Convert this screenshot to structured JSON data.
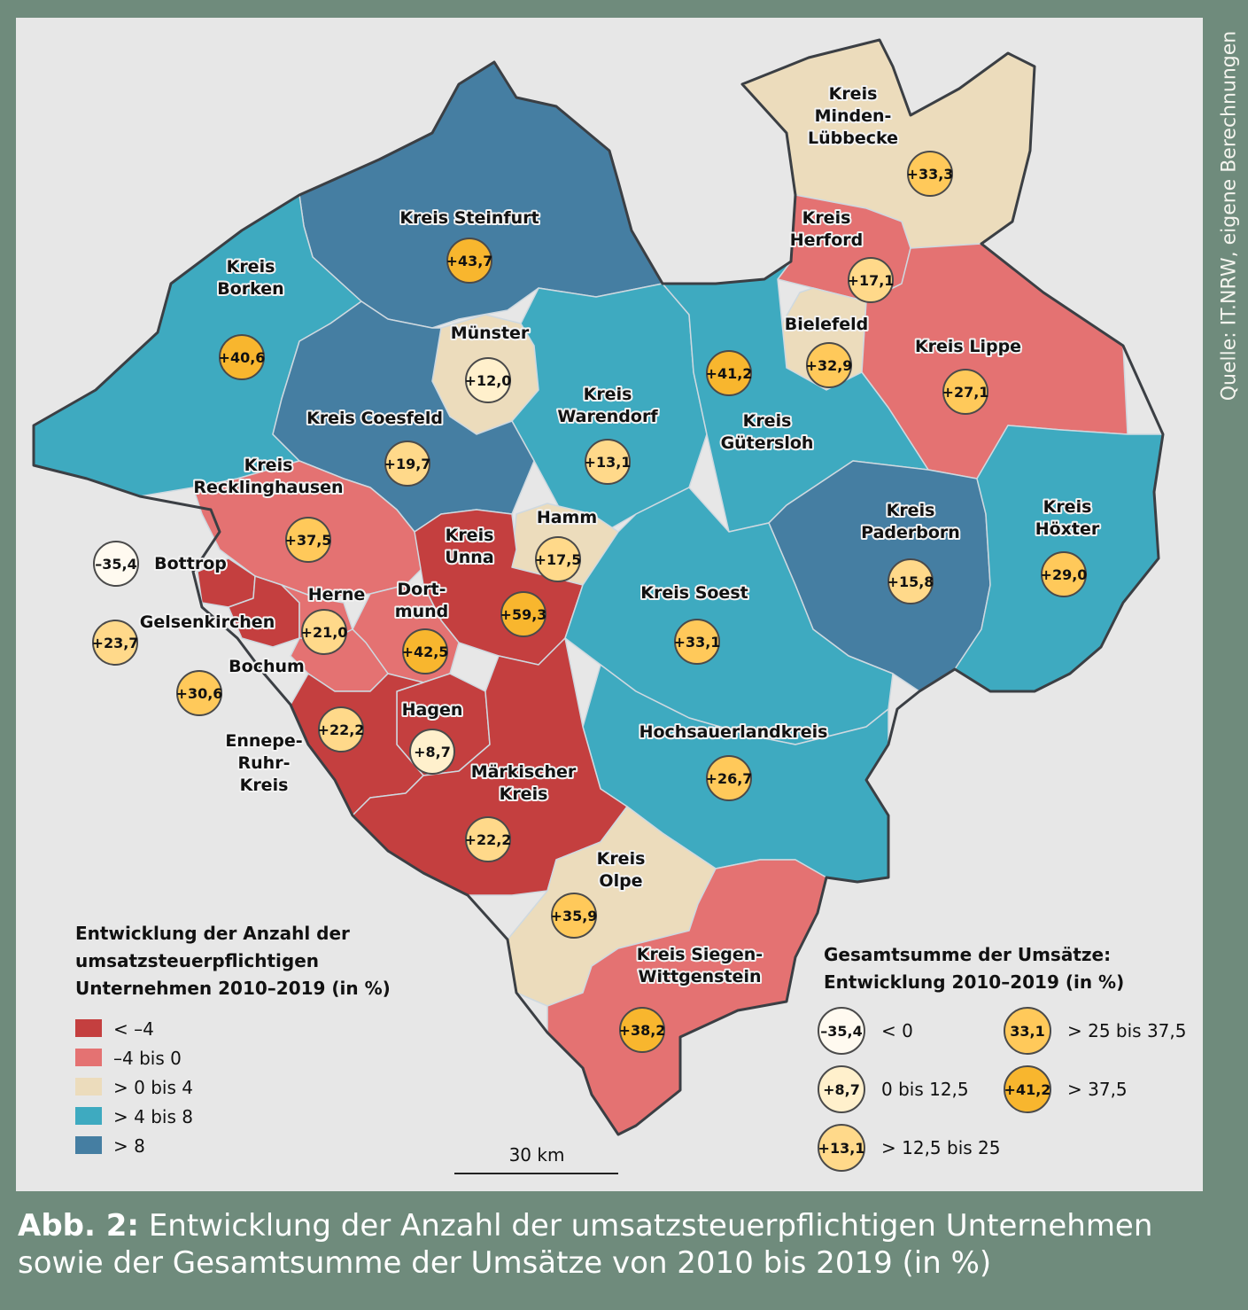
{
  "caption": {
    "label": "Abb. 2:",
    "text_line1": "Entwicklung der Anzahl der umsatzsteuerpflichtigen Unternehmen",
    "text_line2": "sowie der Gesamtsumme der Umsätze von 2010 bis 2019 (in %)"
  },
  "source": "Quelle: IT.NRW, eigene Berechnungen",
  "colors": {
    "lt_minus4": "#c43f3f",
    "minus4_0": "#e47272",
    "0_4": "#ecdcbc",
    "4_8": "#3eaac0",
    "gt8": "#457ea2",
    "circle_lt0": "#fffaf0",
    "circle_0_12_5": "#fff0cc",
    "circle_12_5_25": "#ffd98a",
    "circle_25_37_5": "#ffc95a",
    "circle_gt37_5": "#f8b62e"
  },
  "regions": [
    {
      "name": "Kreis Minden-Lübbecke",
      "label_lines": [
        "Kreis",
        "Minden-",
        "Lübbecke"
      ],
      "class": "0_4",
      "value": "+33,3"
    },
    {
      "name": "Kreis Herford",
      "label_lines": [
        "Kreis",
        "Herford"
      ],
      "class": "minus4_0",
      "value": "+17,1"
    },
    {
      "name": "Bielefeld",
      "label_lines": [
        "Bielefeld"
      ],
      "class": "0_4",
      "value": "+32,9"
    },
    {
      "name": "Kreis Lippe",
      "label_lines": [
        "Kreis Lippe"
      ],
      "class": "minus4_0",
      "value": "+27,1"
    },
    {
      "name": "Kreis Steinfurt",
      "label_lines": [
        "Kreis Steinfurt"
      ],
      "class": "gt8",
      "value": "+43,7"
    },
    {
      "name": "Kreis Borken",
      "label_lines": [
        "Kreis",
        "Borken"
      ],
      "class": "4_8",
      "value": "+40,6"
    },
    {
      "name": "Münster",
      "label_lines": [
        "Münster"
      ],
      "class": "0_4",
      "value": "+12,0"
    },
    {
      "name": "Kreis Warendorf",
      "label_lines": [
        "Kreis",
        "Warendorf"
      ],
      "class": "4_8",
      "value": "+13,1"
    },
    {
      "name": "Kreis Gütersloh",
      "label_lines": [
        "Kreis",
        "Gütersloh"
      ],
      "class": "4_8",
      "value": "+41,2"
    },
    {
      "name": "Kreis Coesfeld",
      "label_lines": [
        "Kreis Coesfeld"
      ],
      "class": "gt8",
      "value": "+19,7"
    },
    {
      "name": "Kreis Recklinghausen",
      "label_lines": [
        "Kreis",
        "Recklinghausen"
      ],
      "class": "minus4_0",
      "value": "+37,5"
    },
    {
      "name": "Kreis Paderborn",
      "label_lines": [
        "Kreis",
        "Paderborn"
      ],
      "class": "gt8",
      "value": "+15,8"
    },
    {
      "name": "Kreis Höxter",
      "label_lines": [
        "Kreis",
        "Höxter"
      ],
      "class": "4_8",
      "value": "+29,0"
    },
    {
      "name": "Hamm",
      "label_lines": [
        "Hamm"
      ],
      "class": "0_4",
      "value": "+17,5"
    },
    {
      "name": "Kreis Unna",
      "label_lines": [
        "Kreis",
        "Unna"
      ],
      "class": "lt_minus4",
      "value": "+59,3"
    },
    {
      "name": "Bottrop",
      "label_lines": [
        "Bottrop"
      ],
      "class": "lt_minus4",
      "value": "–35,4"
    },
    {
      "name": "Gelsenkirchen",
      "label_lines": [
        "Gelsenkirchen"
      ],
      "class": "lt_minus4",
      "value": "+23,7"
    },
    {
      "name": "Herne",
      "label_lines": [
        "Herne"
      ],
      "class": "minus4_0",
      "value": "+21,0"
    },
    {
      "name": "Dortmund",
      "label_lines": [
        "Dort-",
        "mund"
      ],
      "class": "minus4_0",
      "value": "+42,5"
    },
    {
      "name": "Bochum",
      "label_lines": [
        "Bochum"
      ],
      "class": "minus4_0",
      "value": "+30,6"
    },
    {
      "name": "Kreis Soest",
      "label_lines": [
        "Kreis Soest"
      ],
      "class": "4_8",
      "value": "+33,1"
    },
    {
      "name": "Hagen",
      "label_lines": [
        "Hagen"
      ],
      "class": "lt_minus4",
      "value": "+8,7"
    },
    {
      "name": "Ennepe-Ruhr-Kreis",
      "label_lines": [
        "Ennepe-",
        "Ruhr-",
        "Kreis"
      ],
      "class": "lt_minus4",
      "value": "+22,2"
    },
    {
      "name": "Hochsauerlandkreis",
      "label_lines": [
        "Hochsauerlandkreis"
      ],
      "class": "4_8",
      "value": "+26,7"
    },
    {
      "name": "Märkischer Kreis",
      "label_lines": [
        "Märkischer",
        "Kreis"
      ],
      "class": "lt_minus4",
      "value": "+22,2"
    },
    {
      "name": "Kreis Olpe",
      "label_lines": [
        "Kreis",
        "Olpe"
      ],
      "class": "0_4",
      "value": "+35,9"
    },
    {
      "name": "Kreis Siegen-Wittgenstein",
      "label_lines": [
        "Kreis Siegen-",
        "Wittgenstein"
      ],
      "class": "minus4_0",
      "value": "+38,2"
    }
  ],
  "legend_fill": {
    "title_lines": [
      "Entwicklung der Anzahl der",
      "umsatzsteuerpflichtigen",
      "Unternehmen 2010–2019 (in %)"
    ],
    "items": [
      {
        "class": "lt_minus4",
        "label": "< –4"
      },
      {
        "class": "minus4_0",
        "label": "–4 bis 0"
      },
      {
        "class": "0_4",
        "label": "> 0 bis 4"
      },
      {
        "class": "4_8",
        "label": "> 4 bis 8"
      },
      {
        "class": "gt8",
        "label": "> 8"
      }
    ]
  },
  "legend_circles": {
    "title_lines": [
      "Gesamtsumme der Umsätze:",
      "Entwicklung 2010–2019 (in %)"
    ],
    "items": [
      {
        "class": "circle_lt0",
        "example": "–35,4",
        "label": "< 0"
      },
      {
        "class": "circle_0_12_5",
        "example": "+8,7",
        "label": "0 bis 12,5"
      },
      {
        "class": "circle_12_5_25",
        "example": "+13,1",
        "label": "> 12,5 bis 25"
      },
      {
        "class": "circle_25_37_5",
        "example": "33,1",
        "label": "> 25 bis 37,5"
      },
      {
        "class": "circle_gt37_5",
        "example": "+41,2",
        "label": "> 37,5"
      }
    ]
  },
  "scale_bar": {
    "label": "30 km"
  }
}
